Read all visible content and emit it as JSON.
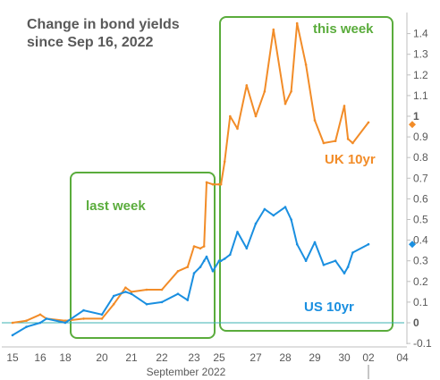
{
  "chart_data": {
    "type": "line",
    "title_lines": [
      "Change in bond yields",
      "since Sep 16, 2022"
    ],
    "xlabel": "September 2022",
    "x_ticks": [
      "15",
      "16",
      "18",
      "20",
      "21",
      "22",
      "23",
      "25",
      "27",
      "28",
      "29",
      "30",
      "02",
      "04"
    ],
    "y_ticks": [
      "1.4",
      "1.3",
      "1.2",
      "1.1",
      "1",
      "0.9",
      "0.8",
      "0.7",
      "0.6",
      "0.5",
      "0.4",
      "0.3",
      "0.2",
      "0.1",
      "0",
      "-0.1"
    ],
    "ylim": [
      -0.13,
      1.47
    ],
    "grid": false,
    "annotations": {
      "last_week": "last week",
      "this_week": "this week",
      "uk_label": "UK 10yr",
      "us_label": "US 10yr"
    },
    "colors": {
      "uk": "#f28c28",
      "us": "#1a8fe0",
      "box": "#5aac3c",
      "zero_line": "#3bb3b3",
      "text": "#595959"
    },
    "series": [
      {
        "name": "UK 10yr",
        "x": [
          "15",
          "15.5",
          "16",
          "16.5",
          "18",
          "19",
          "20",
          "20.4",
          "20.8",
          "21",
          "21.5",
          "22",
          "22.5",
          "22.8",
          "23",
          "23.5",
          "23.8",
          "24",
          "24.5",
          "25",
          "25.1",
          "25.3",
          "25.6",
          "26",
          "26.5",
          "27",
          "27.3",
          "27.6",
          "28",
          "28.2",
          "28.4",
          "28.7",
          "29",
          "29.3",
          "29.7",
          "30",
          "30.3",
          "30.7",
          "02"
        ],
        "values": [
          0.0,
          0.01,
          0.04,
          0.02,
          0.01,
          0.02,
          0.02,
          0.09,
          0.17,
          0.15,
          0.16,
          0.16,
          0.25,
          0.27,
          0.37,
          0.36,
          0.37,
          0.68,
          0.67,
          0.67,
          0.67,
          0.78,
          1.0,
          0.94,
          1.15,
          1.0,
          1.12,
          1.42,
          1.06,
          1.12,
          1.45,
          1.25,
          0.98,
          0.87,
          0.88,
          1.05,
          0.89,
          0.87,
          0.97
        ]
      },
      {
        "name": "US 10yr",
        "x": [
          "15",
          "15.5",
          "16",
          "16.5",
          "18",
          "19",
          "20",
          "20.4",
          "20.8",
          "21",
          "21.5",
          "22",
          "22.5",
          "22.8",
          "23",
          "23.5",
          "23.8",
          "24",
          "24.5",
          "25",
          "25.1",
          "25.3",
          "25.6",
          "26",
          "26.5",
          "27",
          "27.3",
          "27.6",
          "28",
          "28.2",
          "28.4",
          "28.7",
          "29",
          "29.3",
          "29.7",
          "30",
          "30.3",
          "30.7",
          "02"
        ],
        "values": [
          -0.06,
          -0.02,
          0.0,
          0.02,
          0.0,
          0.06,
          0.04,
          0.13,
          0.15,
          0.14,
          0.09,
          0.1,
          0.14,
          0.11,
          0.24,
          0.27,
          0.3,
          0.32,
          0.25,
          0.3,
          0.3,
          0.31,
          0.33,
          0.44,
          0.36,
          0.48,
          0.55,
          0.52,
          0.56,
          0.5,
          0.38,
          0.3,
          0.39,
          0.28,
          0.3,
          0.24,
          0.27,
          0.34,
          0.38
        ]
      }
    ],
    "end_markers": {
      "uk": 0.96,
      "us": 0.38
    }
  }
}
